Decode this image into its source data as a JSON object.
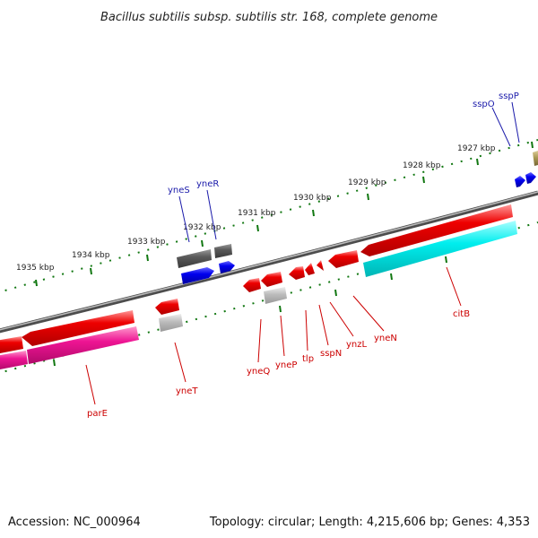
{
  "title": "Bacillus subtilis subsp. subtilis str. 168, complete genome",
  "footer": {
    "accession": "Accession: NC_000964",
    "summary": "Topology: circular; Length: 4,215,606 bp; Genes: 4,353"
  },
  "colors": {
    "forward_gene": "#ee0000",
    "reverse_gene": "#ee0000",
    "cds_forward": "#00e5e5",
    "cds_pink": "#ee1493",
    "rna_blue": "#0000ee",
    "rna_gray": "#555555",
    "pseudo_light": "#aaaaaa",
    "olive": "#aa9955",
    "backbone": "#777777",
    "tick": "#117711",
    "label_forward": "#1a1aaa",
    "label_reverse": "#cc0000"
  },
  "scale_labels": [
    "1927 kbp",
    "1928 kbp",
    "1929 kbp",
    "1930 kbp",
    "1931 kbp",
    "1932 kbp",
    "1933 kbp",
    "1934 kbp",
    "1935 kbp"
  ],
  "genes_forward": [
    "sspO",
    "sspP",
    "yneS",
    "yneR"
  ],
  "genes_reverse": [
    "citB",
    "yneN",
    "ynzL",
    "sspN",
    "tlp",
    "yneP",
    "yneQ",
    "yneT",
    "parE"
  ]
}
